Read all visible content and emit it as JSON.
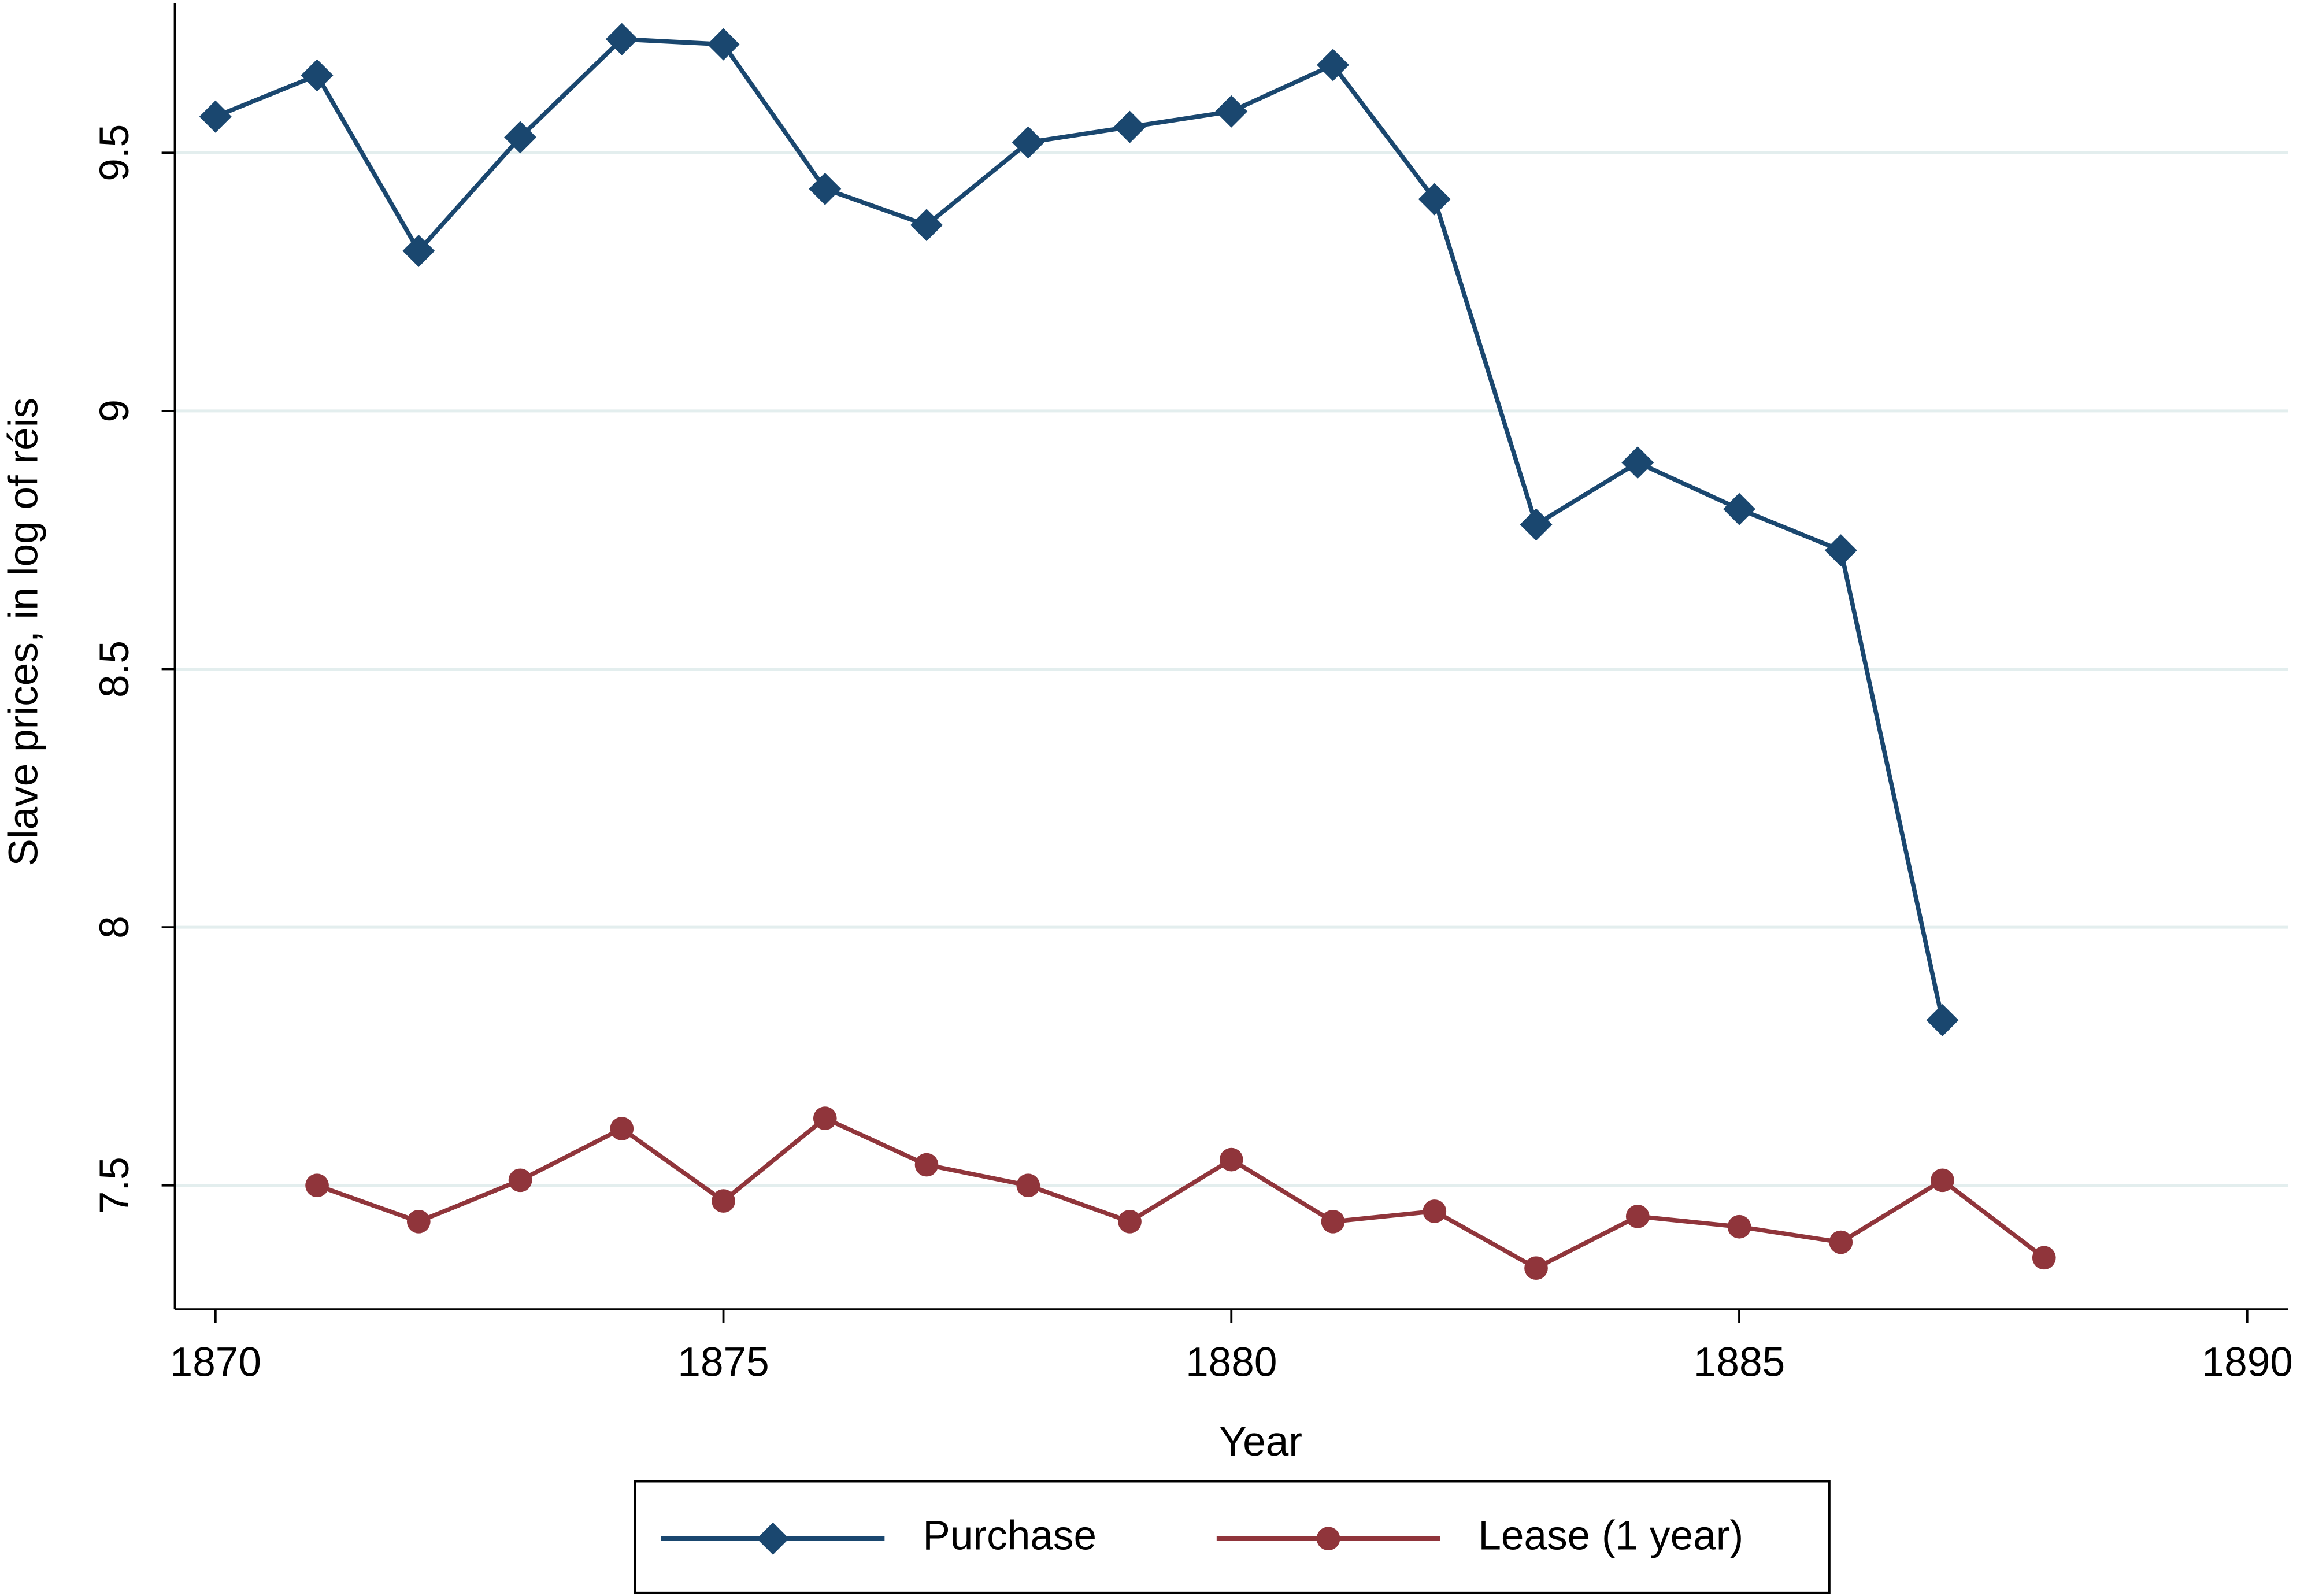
{
  "chart_data": {
    "type": "line",
    "x_label": "Year",
    "y_label": "Slave prices, in log of réis",
    "x": [
      1870,
      1871,
      1872,
      1873,
      1874,
      1875,
      1876,
      1877,
      1878,
      1879,
      1880,
      1881,
      1882,
      1883,
      1884,
      1885,
      1886,
      1887,
      1888
    ],
    "series": [
      {
        "name": "Purchase",
        "color": "#1a476f",
        "marker": "diamond",
        "values": [
          9.57,
          9.65,
          9.31,
          9.53,
          9.72,
          9.71,
          9.43,
          9.36,
          9.52,
          9.55,
          9.58,
          9.67,
          9.41,
          8.78,
          8.9,
          8.81,
          8.73,
          7.82,
          null
        ]
      },
      {
        "name": "Lease (1 year)",
        "color": "#90353b",
        "marker": "circle",
        "values": [
          null,
          7.5,
          7.43,
          7.51,
          7.61,
          7.47,
          7.63,
          7.54,
          7.5,
          7.43,
          7.55,
          7.43,
          7.45,
          7.34,
          7.44,
          7.42,
          7.39,
          7.51,
          7.36
        ]
      }
    ],
    "xlim": [
      1869.6,
      1890.4
    ],
    "xticks": [
      1870,
      1875,
      1880,
      1885,
      1890
    ],
    "ylim": [
      7.26,
      9.79
    ],
    "yticks": [
      7.5,
      8,
      8.5,
      9,
      9.5
    ],
    "grid": true,
    "legend": "bottom"
  }
}
